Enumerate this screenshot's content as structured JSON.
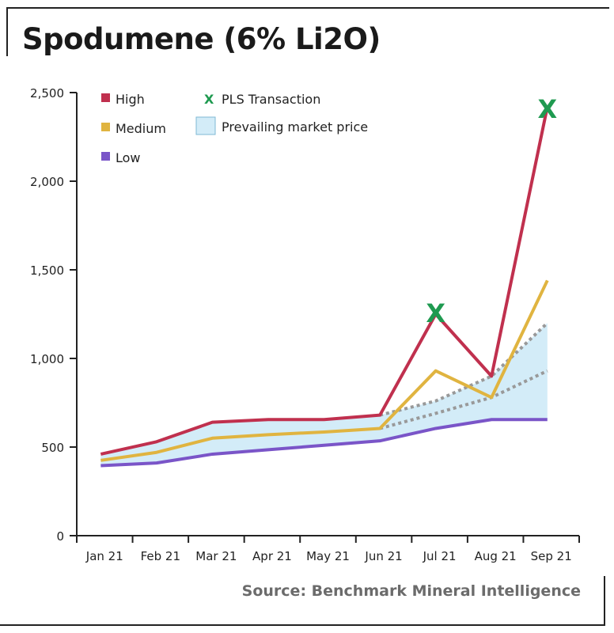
{
  "chart_data": {
    "type": "line",
    "title": "Spodumene (6% Li2O)",
    "source": "Source: Benchmark Mineral Intelligence",
    "categories": [
      "Jan 21",
      "Feb 21",
      "Mar 21",
      "Apr 21",
      "May 21",
      "Jun 21",
      "Jul 21",
      "Aug 21",
      "Sep 21"
    ],
    "ylim": [
      0,
      2500
    ],
    "yticks": [
      0,
      500,
      1000,
      1500,
      2000,
      2500
    ],
    "ytick_labels": [
      "0",
      "500",
      "1,000",
      "1,500",
      "2,000",
      "2,500"
    ],
    "grid": false,
    "legend_placement": "top-left",
    "series": [
      {
        "name": "High",
        "color": "#c0304e",
        "values": [
          460,
          530,
          640,
          655,
          655,
          680,
          1250,
          900,
          2420
        ]
      },
      {
        "name": "Medium",
        "color": "#e0b440",
        "values": [
          425,
          470,
          550,
          570,
          585,
          605,
          930,
          780,
          1440
        ]
      },
      {
        "name": "Low",
        "color": "#7a55c8",
        "values": [
          395,
          410,
          460,
          485,
          510,
          535,
          605,
          655,
          655
        ]
      }
    ],
    "prevailing_market_price": {
      "name": "Prevailing market price",
      "fill": "#d3ecf8",
      "upper": [
        460,
        530,
        640,
        655,
        655,
        680,
        760,
        900,
        1200
      ],
      "lower": [
        395,
        410,
        460,
        485,
        510,
        535,
        605,
        655,
        655
      ]
    },
    "dotted_trend": {
      "color": "#999999",
      "upper": {
        "categories": [
          "Jun 21",
          "Jul 21",
          "Aug 21",
          "Sep 21"
        ],
        "values": [
          680,
          760,
          900,
          1200
        ]
      },
      "lower": {
        "categories": [
          "Jun 21",
          "Jul 21",
          "Aug 21",
          "Sep 21"
        ],
        "values": [
          605,
          690,
          780,
          930
        ]
      }
    },
    "pls_transactions": {
      "name": "PLS Transaction",
      "color": "#1f9a50",
      "marker": "X",
      "points": [
        {
          "x": "Jul 21",
          "y": 1260
        },
        {
          "x": "Sep 21",
          "y": 2410
        }
      ]
    }
  }
}
